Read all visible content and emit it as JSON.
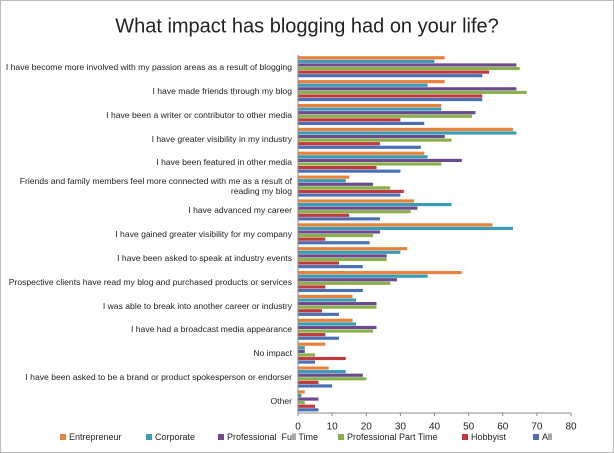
{
  "chart_data": {
    "type": "hbar",
    "title": "What impact has blogging had on your life?",
    "categories": [
      "I have become more involved with my passion areas as a result of blogging",
      "I have made friends through my blog",
      "I have been a writer or contributor to other media",
      "I have greater visibility in my industry",
      "I have been featured in other media",
      "Friends and family members feel more connected with me as a result of reading my blog",
      "I have advanced my career",
      "I have gained greater visibility for my company",
      "I have been asked to speak at industry events",
      "Prospective clients have read my blog and purchased products or services",
      "I was able to break into another career or industry",
      "I have had a broadcast media appearance",
      "No impact",
      "I have been asked to be a brand or product spokesperson or endorser",
      "Other"
    ],
    "series": [
      {
        "name": "Entrepreneur",
        "color": "#e8823a",
        "values": [
          43,
          43,
          42,
          63,
          37,
          15,
          34,
          57,
          32,
          48,
          16,
          16,
          8,
          9,
          2
        ]
      },
      {
        "name": "Corporate",
        "color": "#3a9bb5",
        "values": [
          40,
          38,
          42,
          64,
          38,
          14,
          45,
          63,
          30,
          38,
          17,
          17,
          2,
          14,
          1
        ]
      },
      {
        "name": "Professional  Full Time",
        "color": "#6b4a8e",
        "values": [
          64,
          64,
          52,
          43,
          48,
          22,
          35,
          24,
          26,
          29,
          23,
          23,
          2,
          19,
          6
        ]
      },
      {
        "name": "Professional Part Time",
        "color": "#8ab04a",
        "values": [
          65,
          67,
          51,
          45,
          42,
          27,
          33,
          22,
          26,
          27,
          23,
          22,
          5,
          20,
          2
        ]
      },
      {
        "name": "Hobbyist",
        "color": "#c0393b",
        "values": [
          56,
          54,
          30,
          24,
          23,
          31,
          15,
          8,
          12,
          8,
          7,
          8,
          14,
          6,
          5
        ]
      },
      {
        "name": "All",
        "color": "#4a6fb5",
        "values": [
          54,
          54,
          37,
          36,
          30,
          30,
          24,
          21,
          19,
          19,
          12,
          12,
          5,
          10,
          6
        ]
      }
    ],
    "xlim": [
      0,
      80
    ],
    "xticks": [
      0,
      10,
      20,
      30,
      40,
      50,
      60,
      70,
      80
    ],
    "grid": false
  }
}
